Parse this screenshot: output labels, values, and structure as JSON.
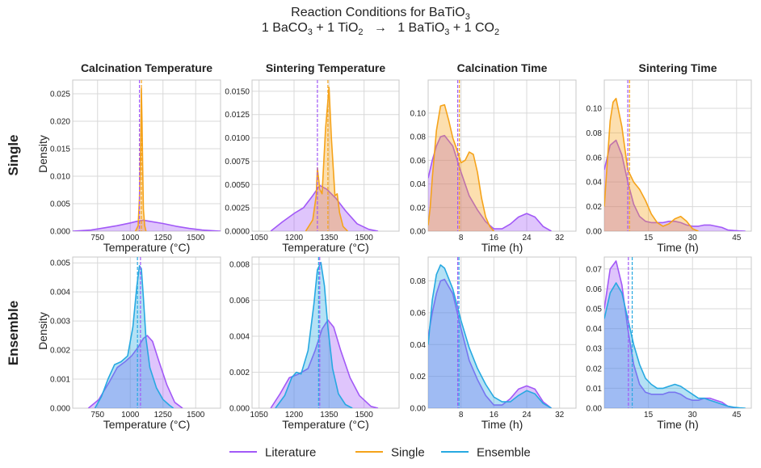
{
  "figure": {
    "title_line1": "Reaction Conditions for BaTiO",
    "title_line1_sub": "3",
    "title_line2_parts": [
      {
        "t": "1 BaCO",
        "sub": "3"
      },
      {
        "t": " + 1 TiO",
        "sub": "2"
      },
      {
        "t": "   →   1 BaTiO",
        "sub": "3"
      },
      {
        "t": " + 1 CO",
        "sub": "2"
      }
    ],
    "row_labels": [
      "Single",
      "Ensemble"
    ],
    "col_titles": [
      "Calcination Temperature",
      "Sintering Temperature",
      "Calcination Time",
      "Sintering Time"
    ],
    "ylabel": "Density",
    "legend": [
      {
        "label": "Literature",
        "color": "#a259f7"
      },
      {
        "label": "Single",
        "color": "#f5a31a"
      },
      {
        "label": "Ensemble",
        "color": "#27a9e1"
      }
    ]
  },
  "colors": {
    "literature": "#a259f7",
    "single": "#f5a31a",
    "ensemble": "#27a9e1",
    "grid": "#d9d9d9"
  },
  "chart_data": [
    {
      "type": "area",
      "row": "Single",
      "col": "Calcination Temperature",
      "xlabel": "Temperature (°C)",
      "ylabel": "Density",
      "xlim": [
        560,
        1690
      ],
      "ylim": [
        0,
        0.0275
      ],
      "xticks": [
        750,
        1000,
        1250,
        1500
      ],
      "yticks": [
        0,
        0.005,
        0.01,
        0.015,
        0.02,
        0.025
      ],
      "ytick_labels": [
        "0.000",
        "0.005",
        "0.010",
        "0.015",
        "0.020",
        "0.025"
      ],
      "vlines": [
        {
          "series": "Literature",
          "x": 1070
        },
        {
          "series": "Single",
          "x": 1085
        }
      ],
      "series": [
        {
          "name": "Literature",
          "x": [
            560,
            700,
            800,
            900,
            1000,
            1050,
            1100,
            1150,
            1250,
            1350,
            1450,
            1550,
            1690
          ],
          "y": [
            0,
            0.0002,
            0.0006,
            0.001,
            0.0015,
            0.0018,
            0.002,
            0.0018,
            0.0014,
            0.0009,
            0.0005,
            0.0002,
            0
          ]
        },
        {
          "name": "Single",
          "x": [
            1040,
            1060,
            1070,
            1080,
            1085,
            1090,
            1095,
            1100,
            1110,
            1120
          ],
          "y": [
            0,
            0.001,
            0.006,
            0.016,
            0.026,
            0.02,
            0.012,
            0.004,
            0.001,
            0
          ]
        }
      ]
    },
    {
      "type": "area",
      "row": "Single",
      "col": "Sintering Temperature",
      "xlabel": "Temperature (°C)",
      "ylabel": "",
      "xlim": [
        1020,
        1650
      ],
      "ylim": [
        0,
        0.0162
      ],
      "xticks": [
        1050,
        1200,
        1350,
        1500
      ],
      "yticks": [
        0,
        0.0025,
        0.005,
        0.0075,
        0.01,
        0.0125,
        0.015
      ],
      "ytick_labels": [
        "0.0000",
        "0.0025",
        "0.0050",
        "0.0075",
        "0.0100",
        "0.0125",
        "0.0150"
      ],
      "vlines": [
        {
          "series": "Literature",
          "x": 1300
        },
        {
          "series": "Single",
          "x": 1345
        }
      ],
      "series": [
        {
          "name": "Literature",
          "x": [
            1100,
            1150,
            1200,
            1240,
            1280,
            1310,
            1340,
            1380,
            1420,
            1470,
            1520,
            1560
          ],
          "y": [
            0,
            0.001,
            0.0019,
            0.0025,
            0.0038,
            0.0049,
            0.0045,
            0.0035,
            0.0022,
            0.0008,
            0.0002,
            0
          ]
        },
        {
          "name": "Single",
          "x": [
            1250,
            1280,
            1295,
            1300,
            1310,
            1320,
            1335,
            1350,
            1360,
            1375,
            1385,
            1395,
            1410,
            1430
          ],
          "y": [
            0,
            0.0012,
            0.0038,
            0.0068,
            0.0045,
            0.004,
            0.011,
            0.0154,
            0.01,
            0.0038,
            0.004,
            0.002,
            0.0005,
            0
          ]
        }
      ]
    },
    {
      "type": "area",
      "row": "Single",
      "col": "Calcination Time",
      "xlabel": "Time (h)",
      "ylabel": "",
      "xlim": [
        0,
        36
      ],
      "ylim": [
        0,
        0.128
      ],
      "xticks": [
        8,
        16,
        24,
        32
      ],
      "yticks": [
        0,
        0.02,
        0.04,
        0.06,
        0.08,
        0.1
      ],
      "ytick_labels": [
        "0.00",
        "0.02",
        "0.04",
        "0.06",
        "0.08",
        "0.10"
      ],
      "vlines": [
        {
          "series": "Literature",
          "x": 7.2
        },
        {
          "series": "Single",
          "x": 7.6
        }
      ],
      "series": [
        {
          "name": "Literature",
          "x": [
            0,
            1,
            2,
            3,
            4,
            6,
            8,
            10,
            12,
            14,
            16,
            18,
            20,
            22,
            24,
            26,
            28,
            30
          ],
          "y": [
            0.045,
            0.06,
            0.072,
            0.08,
            0.081,
            0.072,
            0.05,
            0.03,
            0.018,
            0.008,
            0.002,
            0.002,
            0.006,
            0.012,
            0.015,
            0.012,
            0.004,
            0
          ]
        },
        {
          "name": "Single",
          "x": [
            0,
            0.5,
            1,
            2,
            3,
            4,
            5,
            6,
            7,
            8,
            9,
            10,
            11,
            12,
            13,
            14,
            15,
            16
          ],
          "y": [
            0.005,
            0.02,
            0.045,
            0.085,
            0.106,
            0.107,
            0.094,
            0.079,
            0.069,
            0.058,
            0.06,
            0.067,
            0.065,
            0.05,
            0.028,
            0.012,
            0.004,
            0
          ]
        }
      ]
    },
    {
      "type": "area",
      "row": "Single",
      "col": "Sintering Time",
      "xlabel": "Time (h)",
      "ylabel": "",
      "xlim": [
        0,
        50
      ],
      "ylim": [
        0,
        0.123
      ],
      "xticks": [
        15,
        30,
        45
      ],
      "yticks": [
        0,
        0.02,
        0.04,
        0.06,
        0.08,
        0.1
      ],
      "ytick_labels": [
        "0.00",
        "0.02",
        "0.04",
        "0.06",
        "0.08",
        "0.10"
      ],
      "vlines": [
        {
          "series": "Literature",
          "x": 8.0
        },
        {
          "series": "Single",
          "x": 8.6
        }
      ],
      "series": [
        {
          "name": "Literature",
          "x": [
            0,
            2,
            4,
            6,
            8,
            10,
            12,
            14,
            16,
            18,
            20,
            22,
            24,
            26,
            28,
            30,
            32,
            34,
            36,
            38,
            40,
            42,
            44,
            46,
            48
          ],
          "y": [
            0.05,
            0.07,
            0.074,
            0.062,
            0.04,
            0.022,
            0.012,
            0.008,
            0.007,
            0.007,
            0.007,
            0.008,
            0.008,
            0.007,
            0.005,
            0.004,
            0.004,
            0.005,
            0.005,
            0.004,
            0.003,
            0.001,
            0.0005,
            0.0002,
            0
          ]
        },
        {
          "name": "Single",
          "x": [
            0,
            1,
            2,
            3,
            4,
            6,
            8,
            10,
            12,
            14,
            16,
            18,
            20,
            22,
            24,
            26,
            28,
            30,
            32
          ],
          "y": [
            0.02,
            0.055,
            0.09,
            0.105,
            0.108,
            0.085,
            0.05,
            0.04,
            0.034,
            0.025,
            0.014,
            0.007,
            0.004,
            0.006,
            0.01,
            0.012,
            0.008,
            0.002,
            0
          ]
        }
      ]
    },
    {
      "type": "area",
      "row": "Ensemble",
      "col": "Calcination Temperature",
      "xlabel": "Temperature (°C)",
      "ylabel": "Density",
      "xlim": [
        560,
        1690
      ],
      "ylim": [
        0,
        0.0052
      ],
      "xticks": [
        750,
        1000,
        1250,
        1500
      ],
      "yticks": [
        0,
        0.001,
        0.002,
        0.003,
        0.004,
        0.005
      ],
      "ytick_labels": [
        "0.000",
        "0.001",
        "0.002",
        "0.003",
        "0.004",
        "0.005"
      ],
      "vlines": [
        {
          "series": "Ensemble",
          "x": 1055
        },
        {
          "series": "Literature",
          "x": 1078
        }
      ],
      "series": [
        {
          "name": "Literature",
          "x": [
            680,
            760,
            840,
            900,
            960,
            1010,
            1060,
            1100,
            1130,
            1170,
            1220,
            1280,
            1340,
            1400
          ],
          "y": [
            0,
            0.0003,
            0.0009,
            0.0014,
            0.0016,
            0.0018,
            0.0021,
            0.0024,
            0.0025,
            0.0023,
            0.0016,
            0.0008,
            0.0002,
            0
          ]
        },
        {
          "name": "Ensemble",
          "x": [
            730,
            780,
            830,
            880,
            930,
            980,
            1020,
            1050,
            1070,
            1085,
            1100,
            1120,
            1150,
            1200,
            1250,
            1300,
            1330
          ],
          "y": [
            0,
            0.0004,
            0.001,
            0.0015,
            0.0016,
            0.0018,
            0.0028,
            0.0042,
            0.0049,
            0.0048,
            0.0038,
            0.0024,
            0.0014,
            0.0007,
            0.0003,
            0.0001,
            0
          ]
        }
      ]
    },
    {
      "type": "area",
      "row": "Ensemble",
      "col": "Sintering Temperature",
      "xlabel": "Temperature (°C)",
      "ylabel": "",
      "xlim": [
        1020,
        1650
      ],
      "ylim": [
        0,
        0.0084
      ],
      "xticks": [
        1050,
        1200,
        1350,
        1500
      ],
      "yticks": [
        0,
        0.002,
        0.004,
        0.006,
        0.008
      ],
      "ytick_labels": [
        "0.000",
        "0.002",
        "0.004",
        "0.006",
        "0.008"
      ],
      "vlines": [
        {
          "series": "Ensemble",
          "x": 1305
        },
        {
          "series": "Literature",
          "x": 1310
        }
      ],
      "series": [
        {
          "name": "Literature",
          "x": [
            1100,
            1140,
            1180,
            1220,
            1260,
            1290,
            1320,
            1345,
            1370,
            1400,
            1440,
            1480,
            1530,
            1560
          ],
          "y": [
            0,
            0.0008,
            0.0017,
            0.0019,
            0.0022,
            0.0032,
            0.0044,
            0.0049,
            0.0045,
            0.0032,
            0.0017,
            0.0007,
            0.0001,
            0
          ]
        },
        {
          "name": "Ensemble",
          "x": [
            1120,
            1160,
            1190,
            1210,
            1230,
            1260,
            1285,
            1300,
            1315,
            1330,
            1345,
            1365,
            1390,
            1420,
            1450
          ],
          "y": [
            0,
            0.0007,
            0.0017,
            0.002,
            0.0019,
            0.0032,
            0.0058,
            0.0077,
            0.0081,
            0.0068,
            0.0045,
            0.0022,
            0.0008,
            0.0002,
            0
          ]
        }
      ]
    },
    {
      "type": "area",
      "row": "Ensemble",
      "col": "Calcination Time",
      "xlabel": "Time (h)",
      "ylabel": "",
      "xlim": [
        0,
        36
      ],
      "ylim": [
        0,
        0.095
      ],
      "xticks": [
        8,
        16,
        24,
        32
      ],
      "yticks": [
        0,
        0.02,
        0.04,
        0.06,
        0.08
      ],
      "ytick_labels": [
        "0.00",
        "0.02",
        "0.04",
        "0.06",
        "0.08"
      ],
      "vlines": [
        {
          "series": "Literature",
          "x": 7.2
        },
        {
          "series": "Ensemble",
          "x": 7.5
        }
      ],
      "series": [
        {
          "name": "Literature",
          "x": [
            0,
            1,
            2,
            3,
            4,
            6,
            8,
            10,
            12,
            14,
            16,
            18,
            20,
            22,
            24,
            26,
            28,
            30
          ],
          "y": [
            0.045,
            0.06,
            0.072,
            0.08,
            0.081,
            0.072,
            0.05,
            0.03,
            0.018,
            0.008,
            0.002,
            0.002,
            0.006,
            0.012,
            0.014,
            0.012,
            0.004,
            0
          ]
        },
        {
          "name": "Ensemble",
          "x": [
            0,
            1,
            2,
            3,
            4,
            6,
            8,
            10,
            12,
            14,
            16,
            18,
            20,
            22,
            24,
            26,
            28,
            30
          ],
          "y": [
            0.04,
            0.068,
            0.084,
            0.09,
            0.088,
            0.075,
            0.055,
            0.038,
            0.025,
            0.015,
            0.007,
            0.004,
            0.004,
            0.008,
            0.011,
            0.009,
            0.003,
            0
          ]
        }
      ]
    },
    {
      "type": "area",
      "row": "Ensemble",
      "col": "Sintering Time",
      "xlabel": "Time (h)",
      "ylabel": "",
      "xlim": [
        0,
        50
      ],
      "ylim": [
        0,
        0.076
      ],
      "xticks": [
        15,
        30,
        45
      ],
      "yticks": [
        0,
        0.01,
        0.02,
        0.03,
        0.04,
        0.05,
        0.06,
        0.07
      ],
      "ytick_labels": [
        "0.00",
        "0.01",
        "0.02",
        "0.03",
        "0.04",
        "0.05",
        "0.06",
        "0.07"
      ],
      "vlines": [
        {
          "series": "Literature",
          "x": 8.2
        },
        {
          "series": "Ensemble",
          "x": 9.5
        }
      ],
      "series": [
        {
          "name": "Literature",
          "x": [
            0,
            2,
            4,
            6,
            8,
            10,
            12,
            14,
            16,
            18,
            20,
            22,
            24,
            26,
            28,
            30,
            32,
            34,
            36,
            38,
            40,
            42,
            44,
            46
          ],
          "y": [
            0.05,
            0.07,
            0.074,
            0.062,
            0.04,
            0.022,
            0.012,
            0.008,
            0.007,
            0.007,
            0.007,
            0.008,
            0.008,
            0.007,
            0.005,
            0.004,
            0.004,
            0.005,
            0.005,
            0.004,
            0.003,
            0.001,
            0.0003,
            0
          ]
        },
        {
          "name": "Ensemble",
          "x": [
            0,
            2,
            4,
            6,
            8,
            10,
            12,
            14,
            16,
            18,
            20,
            22,
            24,
            26,
            28,
            30,
            32,
            34,
            36,
            38,
            40,
            42,
            44,
            46,
            48
          ],
          "y": [
            0.045,
            0.058,
            0.063,
            0.058,
            0.045,
            0.032,
            0.022,
            0.015,
            0.012,
            0.01,
            0.01,
            0.011,
            0.012,
            0.011,
            0.009,
            0.007,
            0.005,
            0.005,
            0.004,
            0.003,
            0.002,
            0.001,
            0.0005,
            0.0002,
            0
          ]
        }
      ]
    }
  ]
}
